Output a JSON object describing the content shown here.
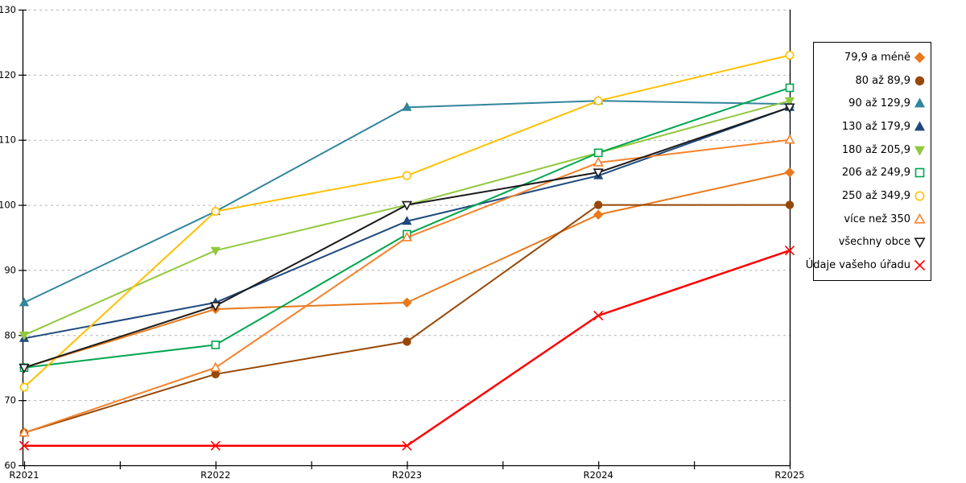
{
  "chart_data": {
    "type": "line",
    "title": "",
    "xlabel": "",
    "ylabel": "",
    "categories": [
      "R2021",
      "R2022",
      "R2023",
      "R2024",
      "R2025"
    ],
    "ylim": [
      60,
      130
    ],
    "ytick_step": 10,
    "ytick_labels": [
      "60",
      "70",
      "80",
      "90",
      "100",
      "110",
      "120",
      "130"
    ],
    "grid": "horizontal-dashed",
    "grid_color": "#b3b3b3",
    "axis_color": "#000000",
    "legend_position": "right-box",
    "series": [
      {
        "name": "79,9 a méně",
        "color": "#E8791D",
        "marker": "diamond",
        "fill": "solid",
        "values": [
          75,
          84,
          85,
          98.5,
          105
        ]
      },
      {
        "name": "80 až 89,9",
        "color": "#974806",
        "marker": "circle",
        "fill": "solid",
        "values": [
          65,
          74,
          79,
          100,
          100
        ]
      },
      {
        "name": "90 až 129,9",
        "color": "#31859C",
        "marker": "triangle-up",
        "fill": "solid",
        "values": [
          85,
          99,
          115,
          116,
          115.5
        ]
      },
      {
        "name": "130 až 179,9",
        "color": "#1F497D",
        "marker": "triangle-up",
        "fill": "solid",
        "values": [
          79.5,
          85,
          97.5,
          104.5,
          115
        ]
      },
      {
        "name": "180 až 205,9",
        "color": "#92C83E",
        "marker": "triangle-down",
        "fill": "solid",
        "values": [
          80,
          93,
          100,
          108,
          116
        ]
      },
      {
        "name": "206 až 249,9",
        "color": "#00A550",
        "marker": "square",
        "fill": "open",
        "values": [
          75,
          78.5,
          95.5,
          108,
          118
        ]
      },
      {
        "name": "250 až 349,9",
        "color": "#FFC000",
        "marker": "circle",
        "fill": "open",
        "values": [
          72,
          99,
          104.5,
          116,
          123
        ]
      },
      {
        "name": "více než 350",
        "color": "#F5822A",
        "marker": "triangle-up",
        "fill": "open",
        "values": [
          65,
          75,
          95,
          106.5,
          110
        ]
      },
      {
        "name": "všechny obce",
        "color": "#1A1A1A",
        "marker": "triangle-down",
        "fill": "open",
        "values": [
          75,
          84.5,
          100,
          105,
          115
        ]
      },
      {
        "name": "Údaje vašeho úřadu",
        "color": "#FF0000",
        "marker": "x",
        "fill": "open",
        "values": [
          63,
          63,
          63,
          83,
          93
        ]
      }
    ]
  }
}
